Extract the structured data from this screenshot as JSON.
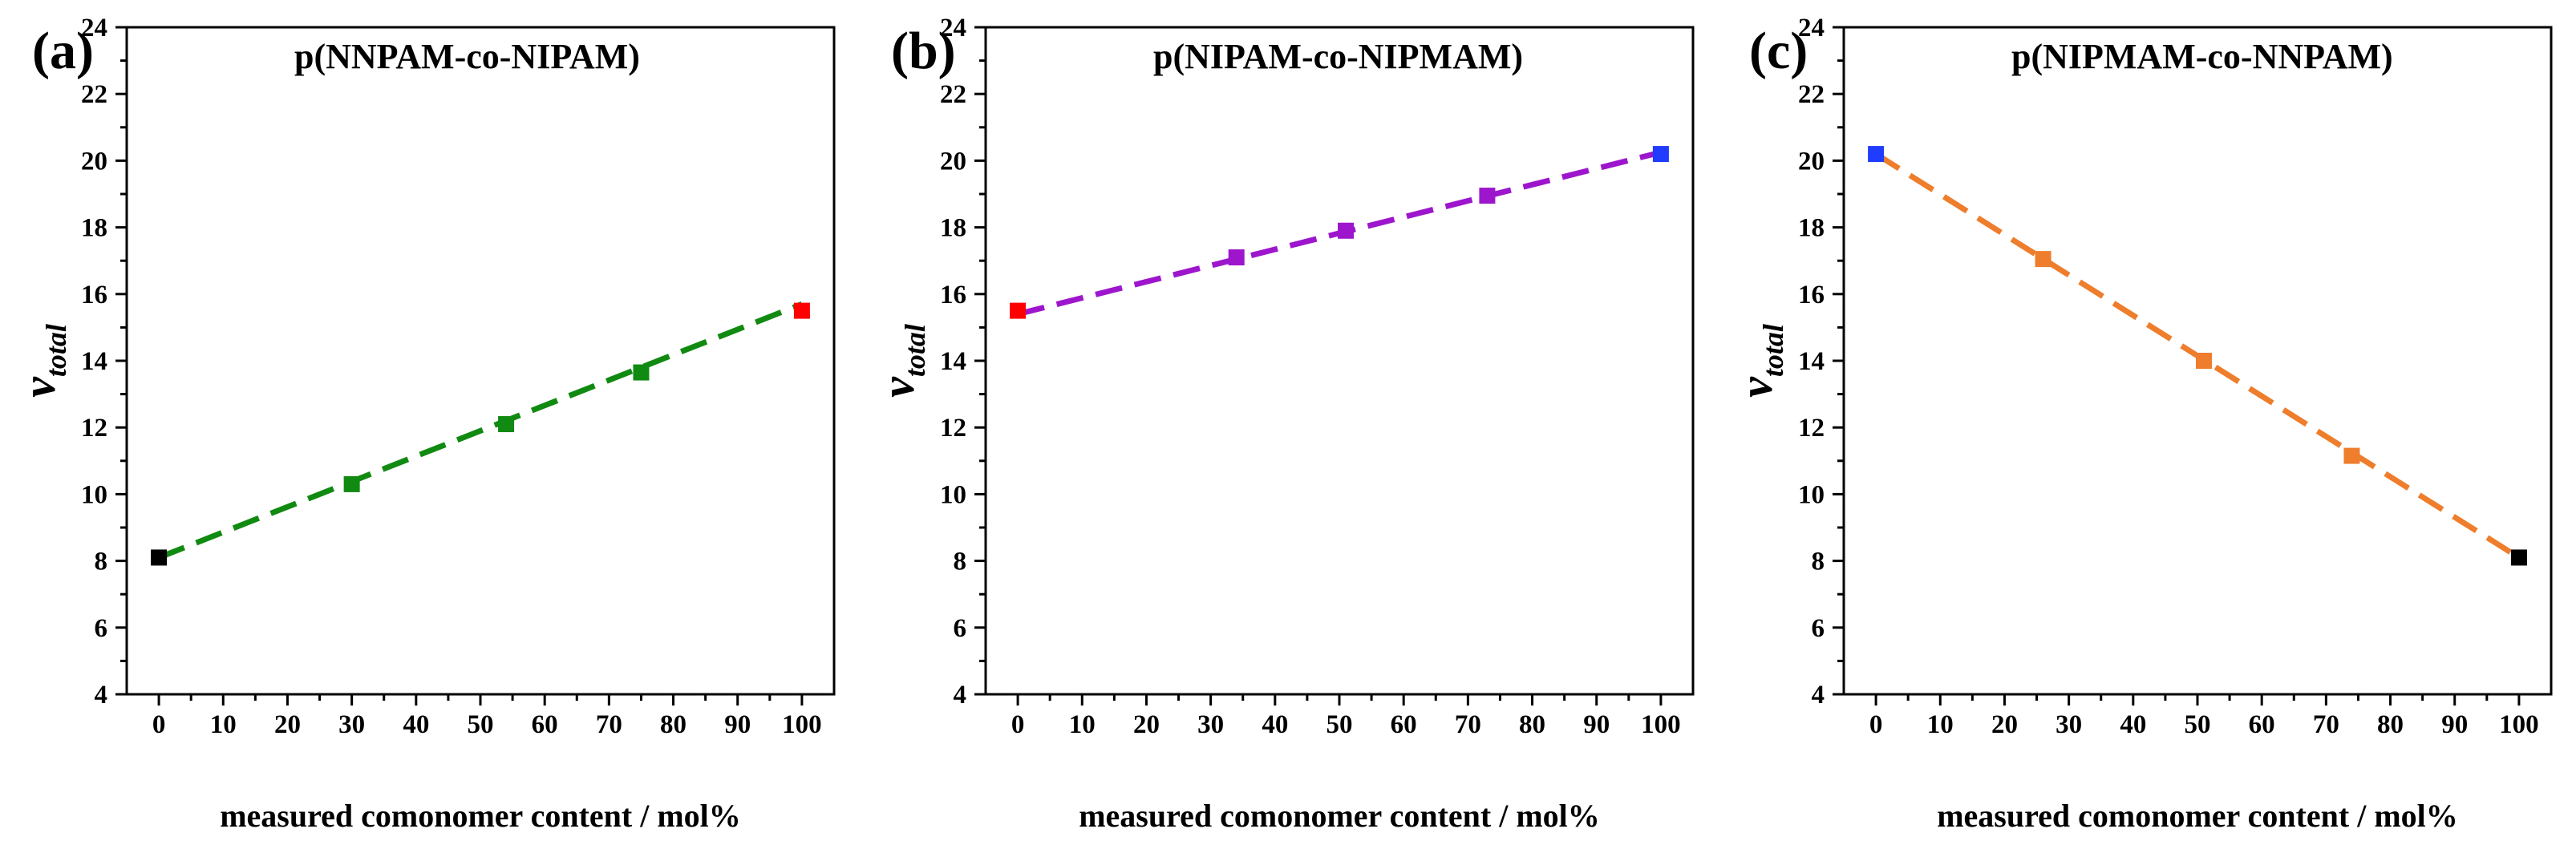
{
  "chart_data": [
    {
      "type": "scatter",
      "panel_label": "(a)",
      "title": "p(NNPAM-co-NIPAM)",
      "xlabel": "measured comonomer content / mol%",
      "ylabel": "ν",
      "ylabel_sub": "total",
      "xlim": [
        -5,
        105
      ],
      "ylim": [
        4,
        24
      ],
      "xticks": [
        0,
        10,
        20,
        30,
        40,
        50,
        60,
        70,
        80,
        90,
        100
      ],
      "yticks": [
        4,
        6,
        8,
        10,
        12,
        14,
        16,
        18,
        20,
        22,
        24
      ],
      "line_color": "#118a11",
      "fit_line": [
        [
          0,
          8.1
        ],
        [
          100,
          15.7
        ]
      ],
      "points": [
        {
          "x": 0,
          "y": 8.1,
          "color": "#000000"
        },
        {
          "x": 30,
          "y": 10.3,
          "color": "#118a11"
        },
        {
          "x": 54,
          "y": 12.1,
          "color": "#118a11"
        },
        {
          "x": 75,
          "y": 13.65,
          "color": "#118a11"
        },
        {
          "x": 100,
          "y": 15.5,
          "color": "#ff0000"
        }
      ]
    },
    {
      "type": "scatter",
      "panel_label": "(b)",
      "title": "p(NIPAM-co-NIPMAM)",
      "xlabel": "measured comonomer content / mol%",
      "ylabel": "ν",
      "ylabel_sub": "total",
      "xlim": [
        -5,
        105
      ],
      "ylim": [
        4,
        24
      ],
      "xticks": [
        0,
        10,
        20,
        30,
        40,
        50,
        60,
        70,
        80,
        90,
        100
      ],
      "yticks": [
        4,
        6,
        8,
        10,
        12,
        14,
        16,
        18,
        20,
        22,
        24
      ],
      "line_color": "#9d16cd",
      "fit_line": [
        [
          0,
          15.4
        ],
        [
          100,
          20.25
        ]
      ],
      "points": [
        {
          "x": 0,
          "y": 15.5,
          "color": "#ff0000"
        },
        {
          "x": 34,
          "y": 17.1,
          "color": "#9d16cd"
        },
        {
          "x": 51,
          "y": 17.9,
          "color": "#9d16cd"
        },
        {
          "x": 73,
          "y": 18.95,
          "color": "#9d16cd"
        },
        {
          "x": 100,
          "y": 20.2,
          "color": "#1f3cff"
        }
      ]
    },
    {
      "type": "scatter",
      "panel_label": "(c)",
      "title": "p(NIPMAM-co-NNPAM)",
      "xlabel": "measured comonomer content / mol%",
      "ylabel": "ν",
      "ylabel_sub": "total",
      "xlim": [
        -5,
        105
      ],
      "ylim": [
        4,
        24
      ],
      "xticks": [
        0,
        10,
        20,
        30,
        40,
        50,
        60,
        70,
        80,
        90,
        100
      ],
      "yticks": [
        4,
        6,
        8,
        10,
        12,
        14,
        16,
        18,
        20,
        22,
        24
      ],
      "line_color": "#ee7d2c",
      "fit_line": [
        [
          0,
          20.2
        ],
        [
          100,
          8.1
        ]
      ],
      "points": [
        {
          "x": 0,
          "y": 20.2,
          "color": "#1f3cff"
        },
        {
          "x": 26,
          "y": 17.05,
          "color": "#ee7d2c"
        },
        {
          "x": 51,
          "y": 14.0,
          "color": "#ee7d2c"
        },
        {
          "x": 74,
          "y": 11.15,
          "color": "#ee7d2c"
        },
        {
          "x": 100,
          "y": 8.1,
          "color": "#000000"
        }
      ]
    }
  ]
}
